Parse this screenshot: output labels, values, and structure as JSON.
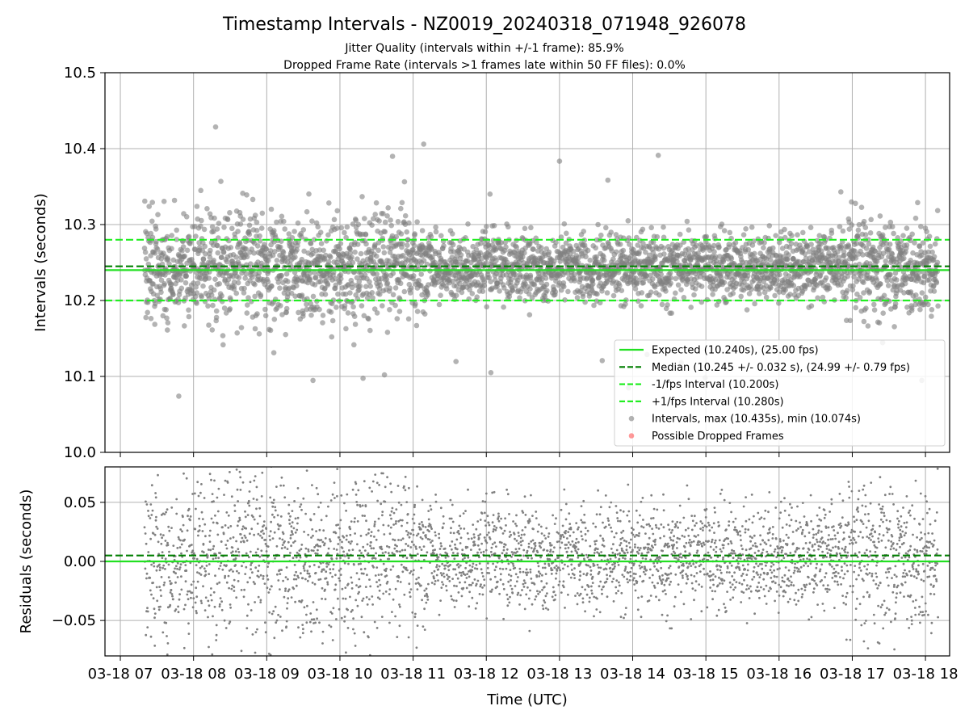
{
  "chart_data": {
    "type": "scatter",
    "title": "Timestamp Intervals - NZ0019_20240318_071948_926078",
    "subtitles": [
      "Jitter Quality (intervals within +/-1 frame): 85.9%",
      "Dropped Frame Rate (intervals >1 frames late within 50 FF files): 0.0%"
    ],
    "xlabel": "Time (UTC)",
    "x_ticks": [
      {
        "hour": 7,
        "label": "03-18 07"
      },
      {
        "hour": 8,
        "label": "03-18 08"
      },
      {
        "hour": 9,
        "label": "03-18 09"
      },
      {
        "hour": 10,
        "label": "03-18 10"
      },
      {
        "hour": 11,
        "label": "03-18 11"
      },
      {
        "hour": 12,
        "label": "03-18 12"
      },
      {
        "hour": 13,
        "label": "03-18 13"
      },
      {
        "hour": 14,
        "label": "03-18 14"
      },
      {
        "hour": 15,
        "label": "03-18 15"
      },
      {
        "hour": 16,
        "label": "03-18 16"
      },
      {
        "hour": 17,
        "label": "03-18 17"
      },
      {
        "hour": 18,
        "label": "03-18 18"
      }
    ],
    "x_range_hours": [
      6.79,
      18.33
    ],
    "data_range_hours": [
      7.33,
      18.17
    ],
    "top_panel": {
      "ylabel": "Intervals (seconds)",
      "ylim": [
        10.0,
        10.5
      ],
      "yticks": [
        "10.0",
        "10.1",
        "10.2",
        "10.3",
        "10.4",
        "10.5"
      ],
      "ytick_values": [
        10.0,
        10.1,
        10.2,
        10.3,
        10.4,
        10.5
      ],
      "grid": true,
      "expected": 10.24,
      "median": 10.245,
      "lower_interval": 10.2,
      "upper_interval": 10.28,
      "max": 10.435,
      "min": 10.074
    },
    "bottom_panel": {
      "ylabel": "Residuals (seconds)",
      "ylim": [
        -0.08,
        0.08
      ],
      "yticks": [
        "−0.05",
        "0.00",
        "0.05"
      ],
      "ytick_values": [
        -0.05,
        0.0,
        0.05
      ],
      "grid": true,
      "zero_line": 0.0,
      "median_residual": 0.005
    },
    "legend": {
      "placement": "lower-right",
      "entries": [
        {
          "label": "Expected (10.240s), (25.00 fps)",
          "style": "solid",
          "color": "#22e022"
        },
        {
          "label": "Median (10.245 +/- 0.032 s), (24.99 +/- 0.79 fps)",
          "style": "dashed",
          "color": "#007f00"
        },
        {
          "label": "-1/fps Interval (10.200s)",
          "style": "dashed",
          "color": "#22ee22"
        },
        {
          "label": "+1/fps Interval (10.280s)",
          "style": "dashed",
          "color": "#22ee22"
        },
        {
          "label": "Intervals, max (10.435s), min (10.074s)",
          "style": "point",
          "color": "#808080"
        },
        {
          "label": "Possible Dropped Frames",
          "style": "point",
          "color": "#ff5555"
        }
      ]
    },
    "colors": {
      "expected": "#22e022",
      "median": "#007f00",
      "interval_bounds": "#22ee22",
      "points": "#808080",
      "dropped": "#ff5555",
      "grid": "#b0b0b0"
    }
  }
}
